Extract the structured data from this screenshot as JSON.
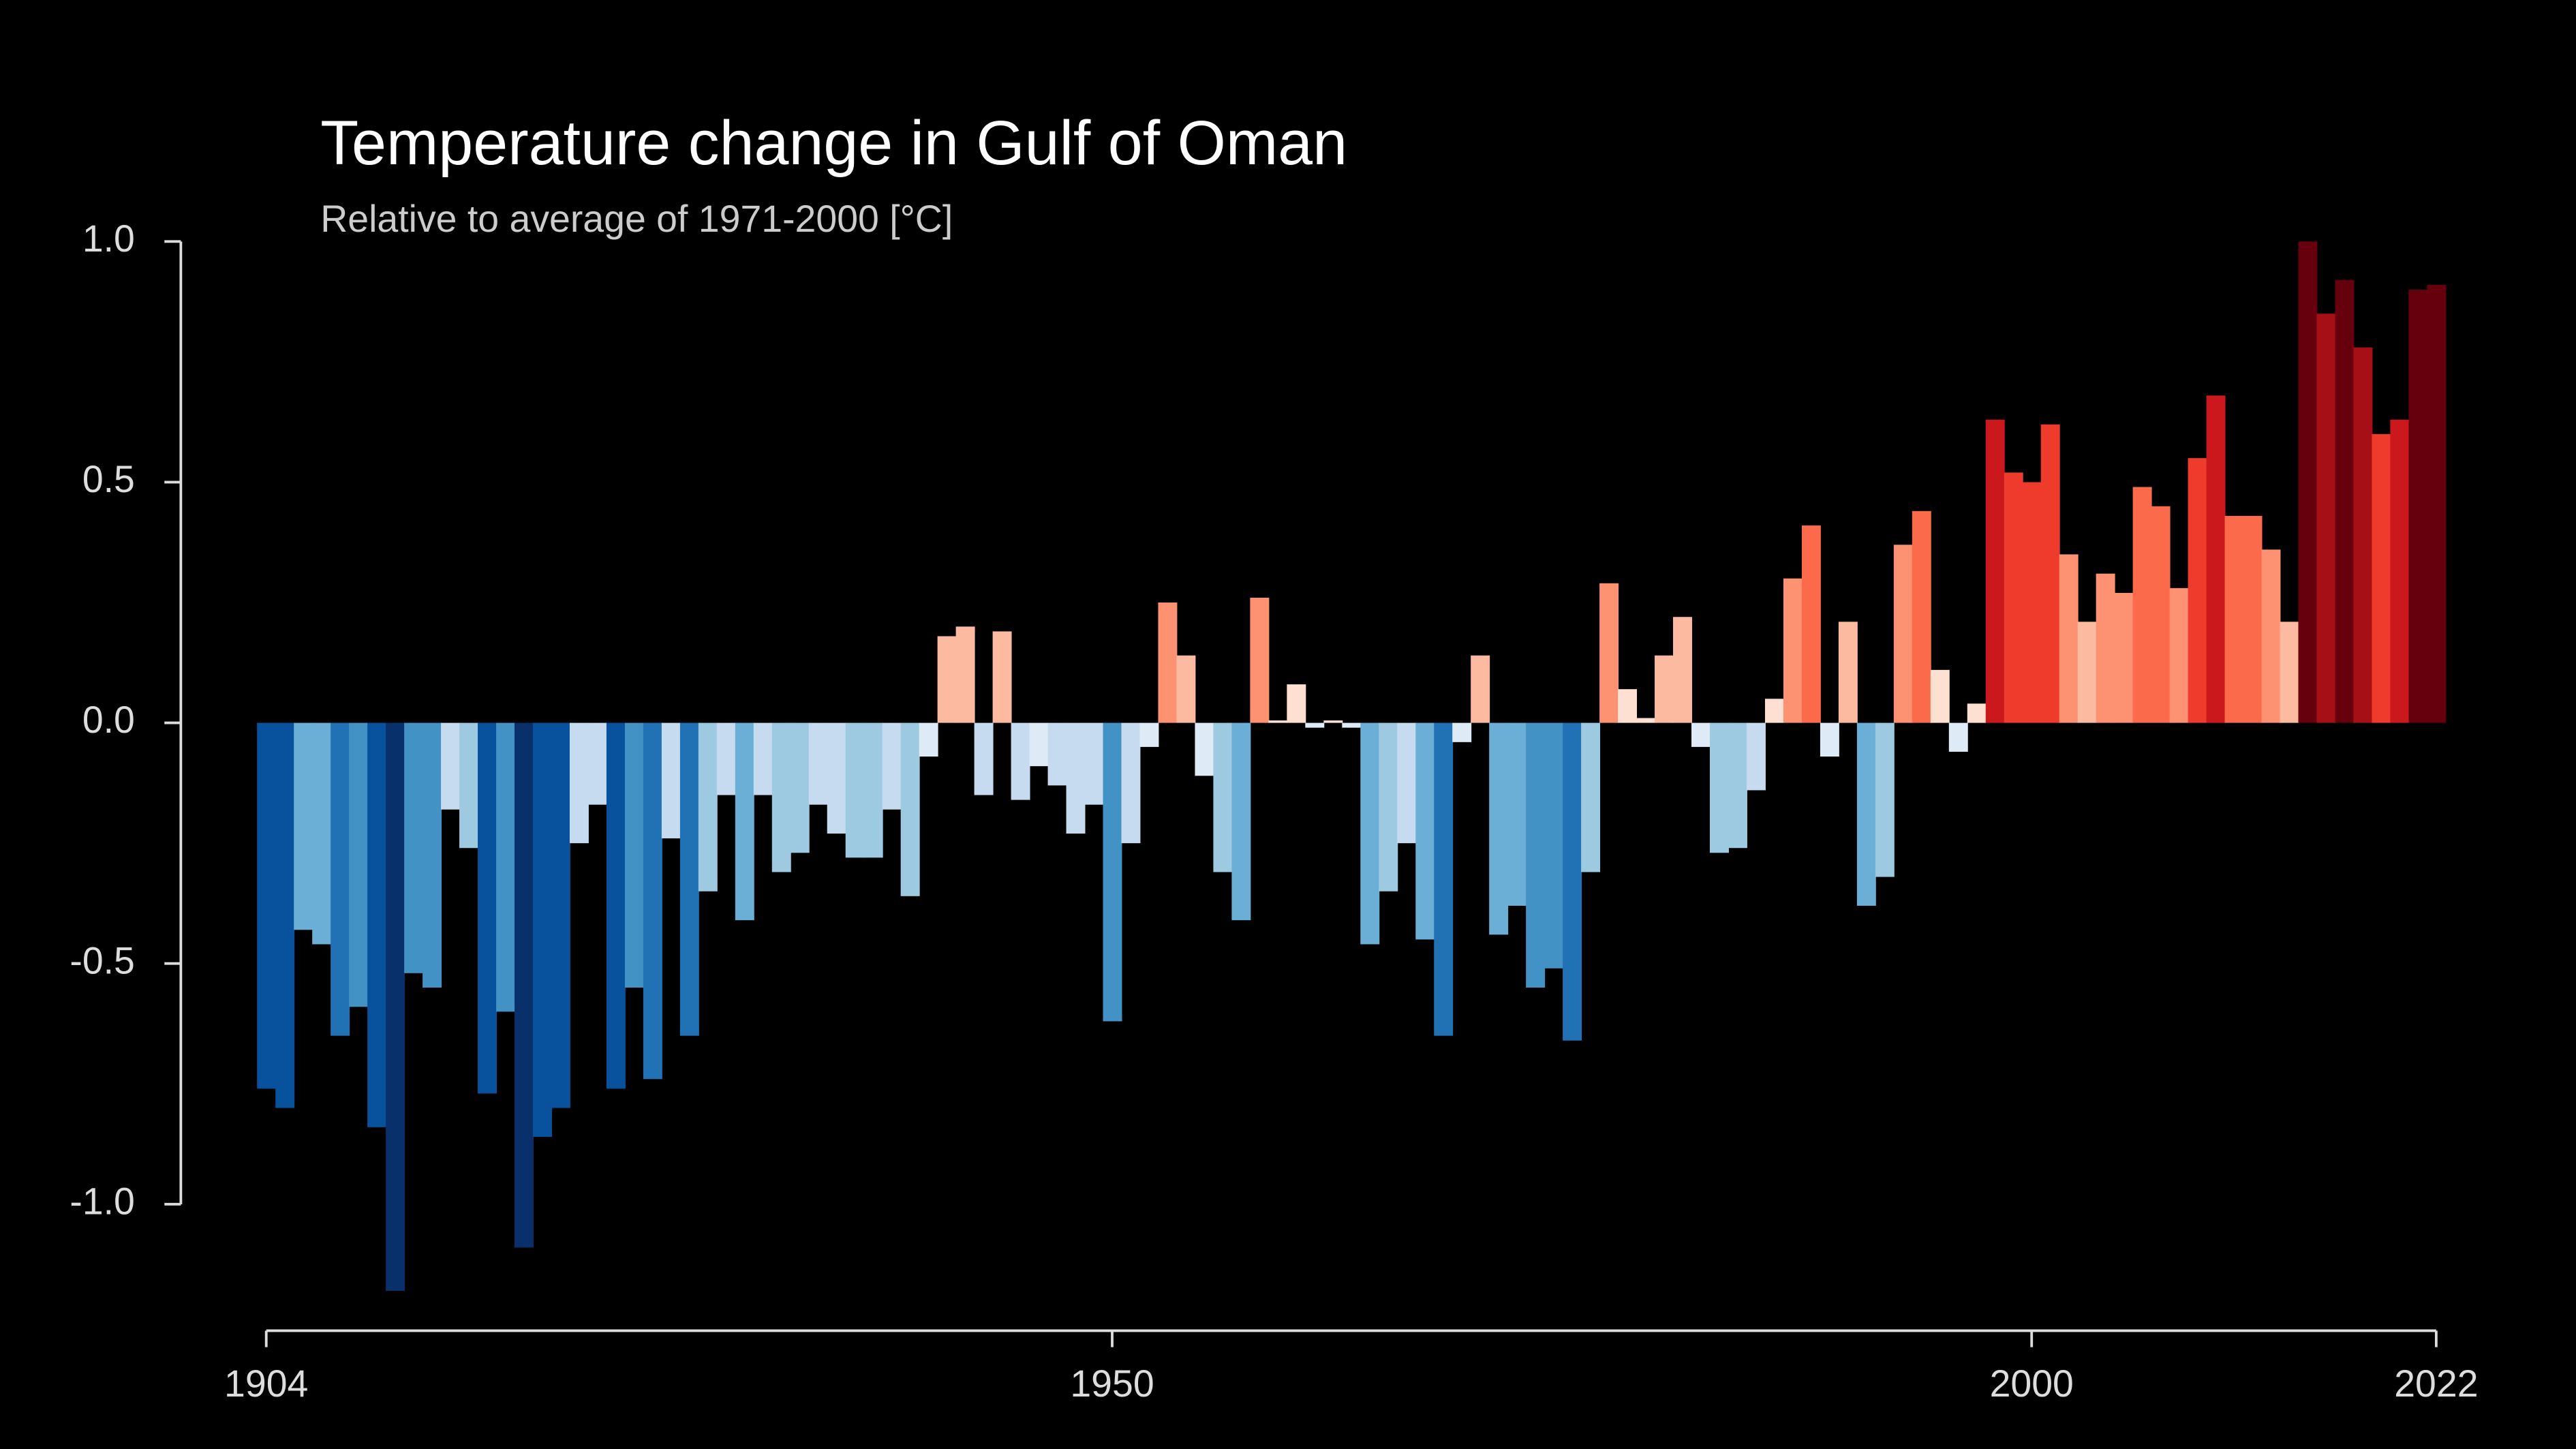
{
  "chart_data": {
    "type": "bar",
    "title": "Temperature change in Gulf of Oman",
    "subtitle": "Relative to average of 1971-2000  [°C]",
    "x": [
      1904,
      1905,
      1906,
      1907,
      1908,
      1909,
      1910,
      1911,
      1912,
      1913,
      1914,
      1915,
      1916,
      1917,
      1918,
      1919,
      1920,
      1921,
      1922,
      1923,
      1924,
      1925,
      1926,
      1927,
      1928,
      1929,
      1930,
      1931,
      1932,
      1933,
      1934,
      1935,
      1936,
      1937,
      1938,
      1939,
      1940,
      1941,
      1942,
      1943,
      1944,
      1945,
      1946,
      1947,
      1948,
      1949,
      1950,
      1951,
      1952,
      1953,
      1954,
      1955,
      1956,
      1957,
      1958,
      1959,
      1960,
      1961,
      1962,
      1963,
      1964,
      1965,
      1966,
      1967,
      1968,
      1969,
      1970,
      1971,
      1972,
      1973,
      1974,
      1975,
      1976,
      1977,
      1978,
      1979,
      1980,
      1981,
      1982,
      1983,
      1984,
      1985,
      1986,
      1987,
      1988,
      1989,
      1990,
      1991,
      1992,
      1993,
      1994,
      1995,
      1996,
      1997,
      1998,
      1999,
      2000,
      2001,
      2002,
      2003,
      2004,
      2005,
      2006,
      2007,
      2008,
      2009,
      2010,
      2011,
      2012,
      2013,
      2014,
      2015,
      2016,
      2017,
      2018,
      2019,
      2020,
      2021,
      2022
    ],
    "values": [
      -0.76,
      -0.8,
      -0.43,
      -0.46,
      -0.65,
      -0.59,
      -0.84,
      -1.18,
      -0.52,
      -0.55,
      -0.18,
      -0.26,
      -0.77,
      -0.6,
      -1.09,
      -0.86,
      -0.8,
      -0.25,
      -0.17,
      -0.76,
      -0.55,
      -0.74,
      -0.24,
      -0.65,
      -0.35,
      -0.15,
      -0.41,
      -0.15,
      -0.31,
      -0.27,
      -0.17,
      -0.23,
      -0.28,
      -0.28,
      -0.18,
      -0.36,
      -0.07,
      0.18,
      0.2,
      -0.15,
      0.19,
      -0.16,
      -0.09,
      -0.13,
      -0.23,
      -0.17,
      -0.62,
      -0.25,
      -0.05,
      0.25,
      0.14,
      -0.11,
      -0.31,
      -0.41,
      0.26,
      0.005,
      0.08,
      -0.01,
      0.005,
      -0.01,
      -0.46,
      -0.35,
      -0.25,
      -0.45,
      -0.65,
      -0.04,
      0.14,
      -0.44,
      -0.38,
      -0.55,
      -0.51,
      -0.66,
      -0.31,
      0.29,
      0.07,
      0.01,
      0.14,
      0.22,
      -0.05,
      -0.27,
      -0.26,
      -0.14,
      0.05,
      0.3,
      0.41,
      -0.07,
      0.21,
      -0.38,
      -0.32,
      0.37,
      0.44,
      0.11,
      -0.06,
      0.04,
      0.63,
      0.52,
      0.5,
      0.62,
      0.35,
      0.21,
      0.31,
      0.27,
      0.49,
      0.45,
      0.28,
      0.55,
      0.68,
      0.43,
      0.43,
      0.36,
      0.21,
      1.0,
      0.85,
      0.92,
      0.78,
      0.6,
      0.63,
      0.9,
      0.91
    ],
    "colormap": [
      "#08306b",
      "#08519c",
      "#2171b5",
      "#4292c6",
      "#6baed6",
      "#9ecae1",
      "#c6dbef",
      "#deebf7",
      "#fee0d2",
      "#fcbba1",
      "#fc9272",
      "#fb6a4a",
      "#ef3b2c",
      "#cb181d",
      "#a50f15",
      "#67000d"
    ],
    "color_limits": [
      -1.0,
      1.0
    ],
    "xlim": [
      1904,
      2022
    ],
    "xticks": [
      1904,
      1950,
      2000,
      2022
    ],
    "ylim": [
      -1.0,
      1.0
    ],
    "yticks": [
      {
        "value": -1.0,
        "label": "-1.0"
      },
      {
        "value": -0.5,
        "label": "-0.5"
      },
      {
        "value": 0,
        "label": "0.0"
      },
      {
        "value": 0.5,
        "label": "0.5"
      },
      {
        "value": 1.0,
        "label": "1.0"
      }
    ]
  }
}
